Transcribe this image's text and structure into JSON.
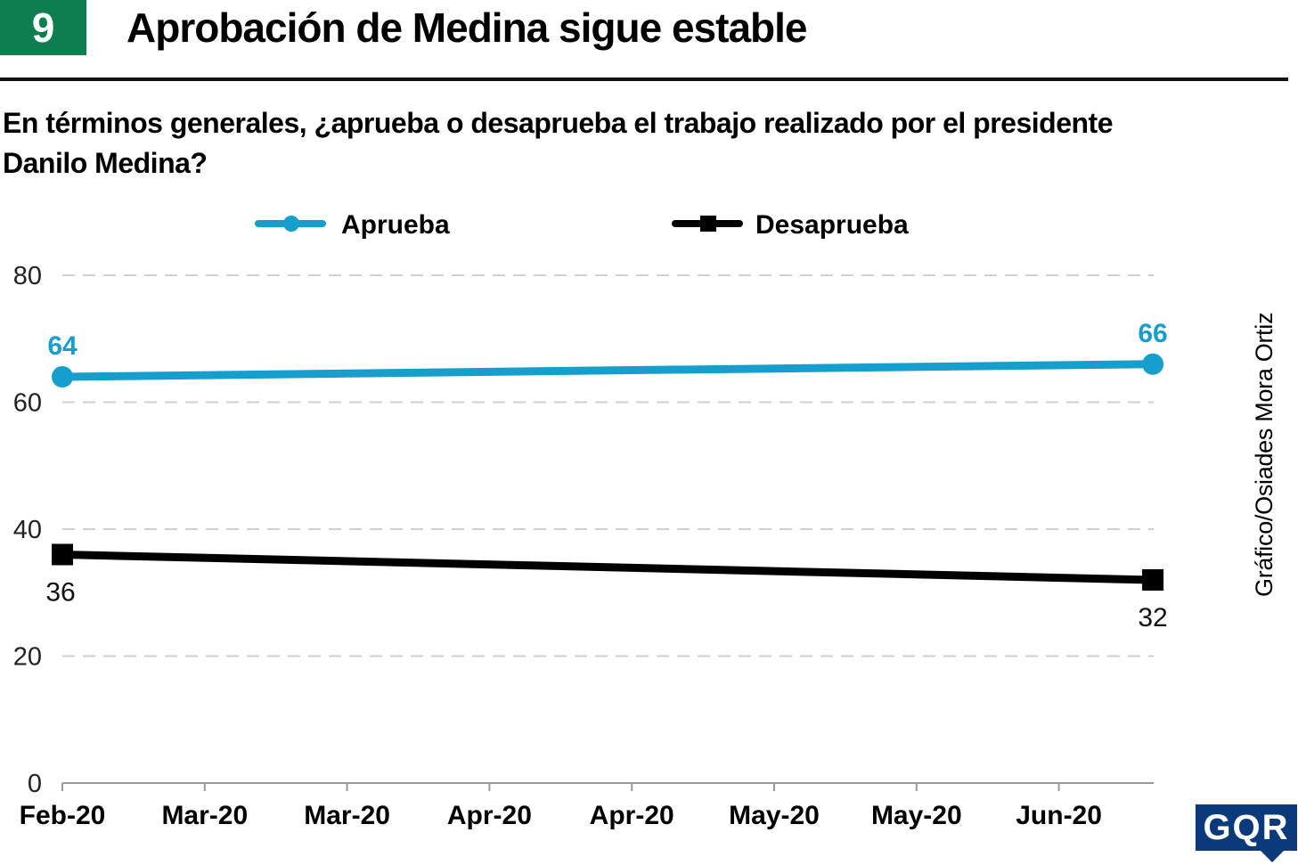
{
  "header": {
    "badge": "9",
    "title": "Aprobación de Medina sigue estable"
  },
  "question": "En términos generales, ¿aprueba o desaprueba el trabajo realizado por el presidente Danilo Medina?",
  "credit": "Gráfico/Osiades Mora Ortiz",
  "logo": "GQR",
  "chart_data": {
    "type": "line",
    "categories": [
      "Feb-20",
      "Mar-20",
      "Mar-20",
      "Apr-20",
      "Apr-20",
      "May-20",
      "May-20",
      "Jun-20"
    ],
    "ylim": [
      0,
      80
    ],
    "yticks": [
      "0",
      "20",
      "40",
      "60",
      "80"
    ],
    "grid": true,
    "legend_position": "top",
    "series": [
      {
        "name": "Aprueba",
        "color": "#169fcc",
        "marker": "circle",
        "points": [
          {
            "x_index": 0,
            "y": 64
          },
          {
            "x_index": 7.66,
            "y": 66
          }
        ],
        "labels": [
          "64",
          "66"
        ]
      },
      {
        "name": "Desaprueba",
        "color": "#000000",
        "marker": "square",
        "points": [
          {
            "x_index": 0,
            "y": 36
          },
          {
            "x_index": 7.66,
            "y": 32
          }
        ],
        "labels": [
          "36",
          "32"
        ]
      }
    ]
  }
}
